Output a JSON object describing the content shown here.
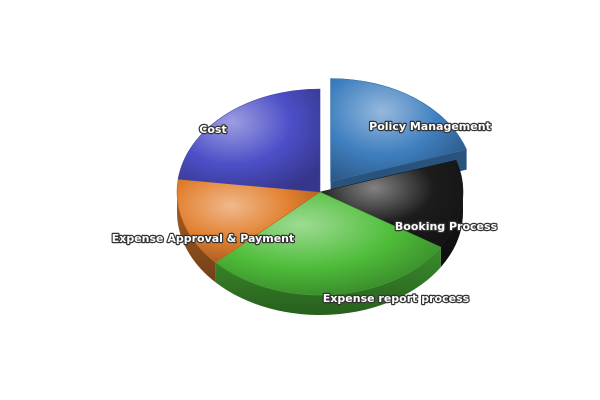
{
  "chart_data": {
    "type": "pie",
    "style": "3d-exploded",
    "title": "",
    "legend": "none",
    "slices": [
      {
        "label": "Policy Management",
        "value": 20,
        "color": "#3f7fc0",
        "exploded": true
      },
      {
        "label": "Booking Process",
        "value": 14,
        "color": "#1c1c1c",
        "exploded": false
      },
      {
        "label": "Expense report process",
        "value": 29,
        "color": "#4fbd3a",
        "exploded": false
      },
      {
        "label": "Expense Approval & Payment",
        "value": 14,
        "color": "#e27f2e",
        "exploded": false
      },
      {
        "label": "Cost",
        "value": 23,
        "color": "#4d4fc8",
        "exploded": false
      }
    ]
  }
}
